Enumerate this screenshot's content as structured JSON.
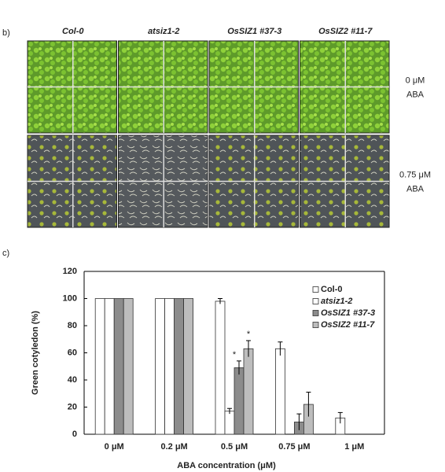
{
  "panel_b": {
    "label": "b)",
    "columns": [
      "Col-0",
      "atsiz1-2",
      "OsSIZ1 #37-3",
      "OsSIZ2 #11-7"
    ],
    "rows": [
      [
        "0 μM",
        "ABA"
      ],
      [
        "0.75 μM",
        "ABA"
      ]
    ]
  },
  "panel_c": {
    "label": "c)"
  },
  "chart_data": {
    "type": "bar",
    "y_label": "Green cotyledon (%)",
    "x_label": "ABA concentration (μM)",
    "categories": [
      "0 μM",
      "0.2 μM",
      "0.5 μM",
      "0.75 μM",
      "1 μM"
    ],
    "series": [
      {
        "name": "Col-0",
        "color": "#ffffff",
        "values": [
          100,
          100,
          98,
          63,
          12
        ],
        "errors": [
          null,
          null,
          2,
          5,
          4
        ]
      },
      {
        "name": "atsiz1-2",
        "color": "#ffffff",
        "values": [
          100,
          100,
          17,
          0,
          0
        ],
        "errors": [
          null,
          null,
          2,
          null,
          null
        ]
      },
      {
        "name": "OsSIZ1 #37-3",
        "color": "#8c8c8c",
        "values": [
          100,
          100,
          49,
          9,
          0
        ],
        "errors": [
          null,
          null,
          5,
          6,
          null
        ]
      },
      {
        "name": "OsSIZ2 #11-7",
        "color": "#bdbdbd",
        "values": [
          100,
          100,
          63,
          22,
          0
        ],
        "errors": [
          null,
          null,
          6,
          9,
          null
        ]
      }
    ],
    "annotations": [
      {
        "text": "*",
        "category_index": 2,
        "series_index": 2
      },
      {
        "text": "*",
        "category_index": 2,
        "series_index": 3
      }
    ],
    "ylim": [
      0,
      120
    ],
    "yticks": [
      0,
      20,
      40,
      60,
      80,
      100,
      120
    ],
    "legend": "top-right"
  }
}
